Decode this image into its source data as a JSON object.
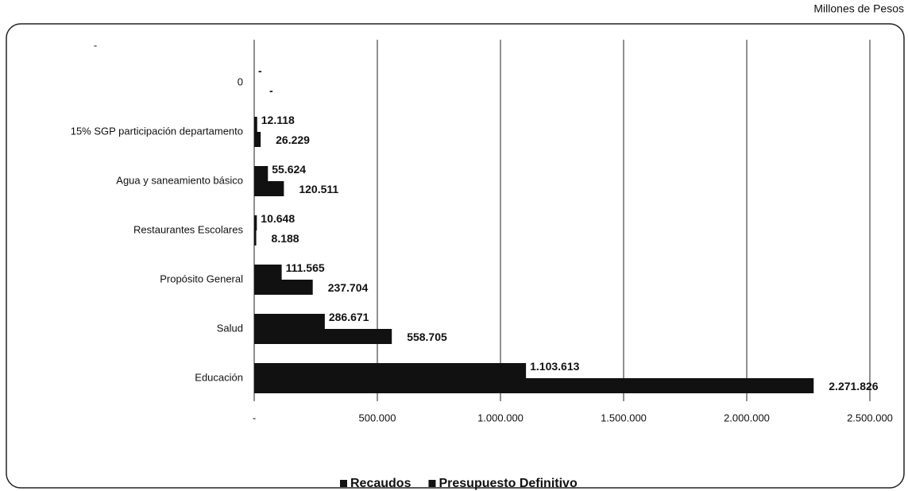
{
  "chart_data": {
    "type": "hbar",
    "unit_label": "Millones de Pesos",
    "annotation": "-",
    "categories": [
      "0",
      "15% SGP participación departamento",
      "Agua y saneamiento básico",
      "Restaurantes Escolares",
      "Propósito General",
      "Salud",
      "Educación"
    ],
    "series": [
      {
        "name": "Recaudos",
        "color": "#111111",
        "values": [
          0,
          12118,
          55624,
          10648,
          111565,
          286671,
          1103613
        ],
        "value_labels": [
          "-",
          "12.118",
          "55.624",
          "10.648",
          "111.565",
          "286.671",
          "1.103.613"
        ]
      },
      {
        "name": "Presupuesto Definitivo",
        "color": "#111111",
        "values": [
          0,
          26229,
          120511,
          8188,
          237704,
          558705,
          2271826
        ],
        "value_labels": [
          "-",
          "26.229",
          "120.511",
          "8.188",
          "237.704",
          "558.705",
          "2.271.826"
        ]
      }
    ],
    "xlim": [
      0,
      2500000
    ],
    "xticks": [
      {
        "value": 0,
        "label": "-"
      },
      {
        "value": 500000,
        "label": "500.000"
      },
      {
        "value": 1000000,
        "label": "1.000.000"
      },
      {
        "value": 1500000,
        "label": "1.500.000"
      },
      {
        "value": 2000000,
        "label": "2.000.000"
      },
      {
        "value": 2500000,
        "label": "2.500.000"
      }
    ],
    "grid": true,
    "legend": "bottom"
  }
}
